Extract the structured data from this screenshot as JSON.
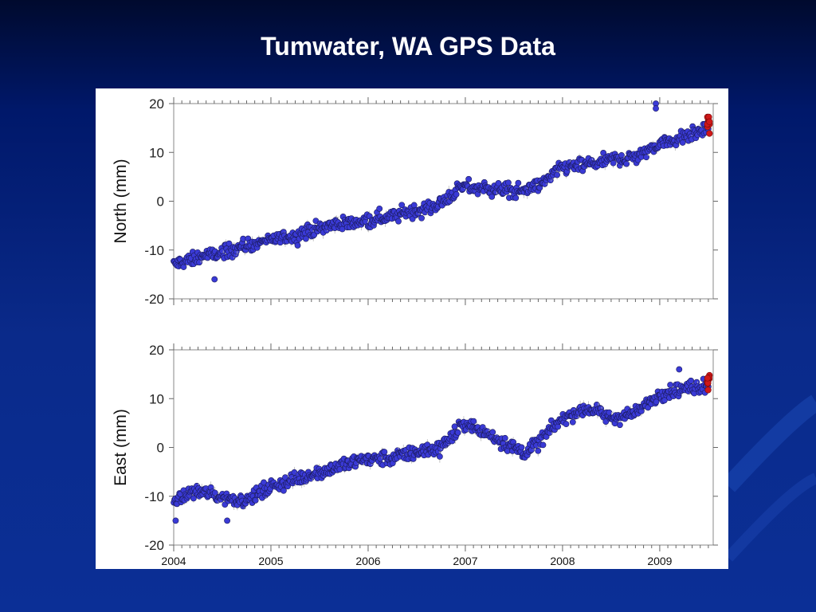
{
  "slide": {
    "title": "Tumwater, WA GPS Data"
  },
  "colors": {
    "background": "#0b2a8c",
    "data_point": "#3a3ad6",
    "latest_point": "#d01818",
    "error_bar": "#b0b0b0"
  },
  "chart_data": [
    {
      "type": "scatter",
      "panel": "north",
      "ylabel": "North (mm)",
      "xlabel": "",
      "ylim": [
        -20,
        20
      ],
      "yticks": [
        -20,
        -10,
        0,
        10,
        20
      ],
      "xlim": [
        2004.0,
        2009.55
      ],
      "xticks": [
        2004,
        2005,
        2006,
        2007,
        2008,
        2009
      ],
      "grid": false,
      "series": [
        {
          "marker": "blue-circle",
          "x": [
            2004.0,
            2004.25,
            2004.5,
            2004.75,
            2005.0,
            2005.25,
            2005.5,
            2005.75,
            2006.0,
            2006.25,
            2006.5,
            2006.75,
            2006.9,
            2007.0,
            2007.25,
            2007.5,
            2007.75,
            2008.0,
            2008.25,
            2008.5,
            2008.75,
            2009.0,
            2009.25,
            2009.5
          ],
          "values": [
            -13,
            -11.5,
            -10.5,
            -9,
            -8,
            -7,
            -5.5,
            -4.5,
            -4,
            -3,
            -2,
            -0.5,
            2,
            3,
            2.5,
            2,
            3,
            7,
            7.5,
            8.5,
            9,
            12,
            13,
            15
          ]
        },
        {
          "marker": "red-circle",
          "x": [
            2009.5
          ],
          "values": [
            15.5
          ]
        }
      ],
      "outliers": [
        {
          "x": 2004.42,
          "value": -16
        },
        {
          "x": 2008.96,
          "value": 20
        },
        {
          "x": 2008.96,
          "value": 19
        }
      ]
    },
    {
      "type": "scatter",
      "panel": "east",
      "ylabel": "East (mm)",
      "xlabel": "",
      "ylim": [
        -20,
        20
      ],
      "yticks": [
        -20,
        -10,
        0,
        10,
        20
      ],
      "xlim": [
        2004.0,
        2009.55
      ],
      "xticks": [
        2004,
        2005,
        2006,
        2007,
        2008,
        2009
      ],
      "x_tick_labels": [
        "2004",
        "2005",
        "2006",
        "2007",
        "2008",
        "2009"
      ],
      "grid": false,
      "series": [
        {
          "marker": "blue-circle",
          "x": [
            2004.0,
            2004.25,
            2004.5,
            2004.75,
            2005.0,
            2005.25,
            2005.5,
            2005.75,
            2006.0,
            2006.25,
            2006.5,
            2006.75,
            2006.9,
            2007.0,
            2007.2,
            2007.4,
            2007.6,
            2007.75,
            2008.0,
            2008.25,
            2008.5,
            2008.75,
            2009.0,
            2009.25,
            2009.5
          ],
          "values": [
            -11,
            -9,
            -10,
            -11,
            -8,
            -6.5,
            -5,
            -3.5,
            -2.5,
            -2,
            -1,
            0,
            3,
            5,
            3,
            1,
            -1,
            1,
            6,
            8,
            6,
            7,
            11,
            12,
            13
          ]
        },
        {
          "marker": "red-circle",
          "x": [
            2009.5
          ],
          "values": [
            13.5
          ]
        }
      ],
      "outliers": [
        {
          "x": 2004.02,
          "value": -15
        },
        {
          "x": 2004.55,
          "value": -15
        },
        {
          "x": 2009.2,
          "value": 16
        }
      ]
    }
  ]
}
